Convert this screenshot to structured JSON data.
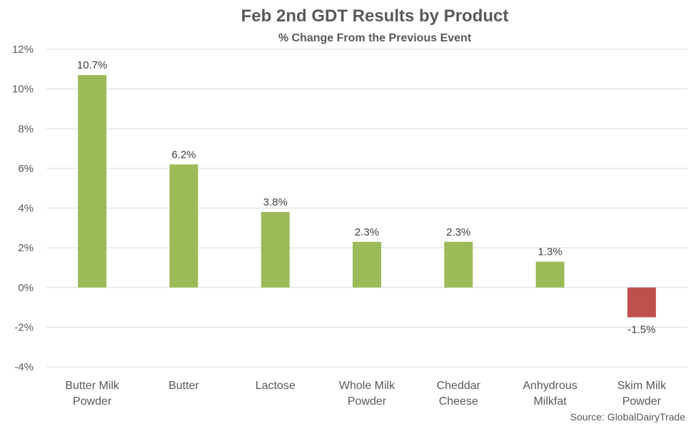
{
  "chart_data": {
    "type": "bar",
    "title": "Feb 2nd GDT Results by Product",
    "subtitle": "% Change From the Previous Event",
    "categories": [
      [
        "Butter Milk",
        "Powder"
      ],
      [
        "Butter"
      ],
      [
        "Lactose"
      ],
      [
        "Whole Milk",
        "Powder"
      ],
      [
        "Cheddar",
        "Cheese"
      ],
      [
        "Anhydrous",
        "Milkfat"
      ],
      [
        "Skim Milk",
        "Powder"
      ]
    ],
    "values": [
      10.7,
      6.2,
      3.8,
      2.3,
      2.3,
      1.3,
      -1.5
    ],
    "data_labels": [
      "10.7%",
      "6.2%",
      "3.8%",
      "2.3%",
      "2.3%",
      "1.3%",
      "-1.5%"
    ],
    "ylim": [
      -4,
      12
    ],
    "yticks": [
      12,
      10,
      8,
      6,
      4,
      2,
      0,
      -2,
      -4
    ],
    "ytick_labels": [
      "12%",
      "10%",
      "8%",
      "6%",
      "4%",
      "2%",
      "0%",
      "-2%",
      "-4%"
    ],
    "grid": true,
    "colors": {
      "positive": "#9BBB59",
      "negative": "#C0504D",
      "grid": "#D9D9D9",
      "text": "#595959"
    },
    "source": "Source: GlobalDairyTrade"
  }
}
